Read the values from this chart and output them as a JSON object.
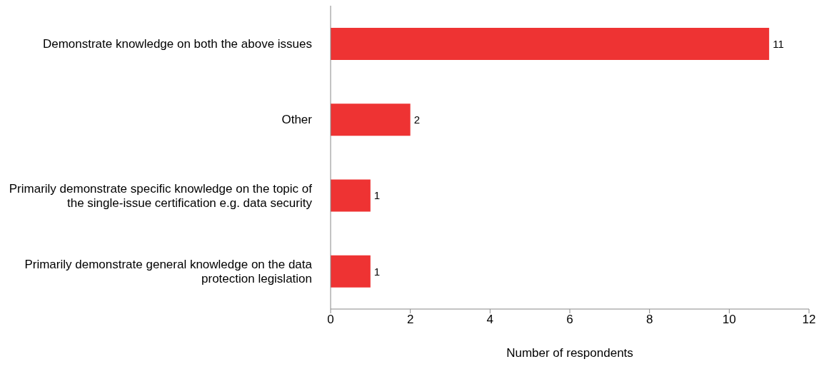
{
  "chart_data": {
    "type": "bar",
    "orientation": "horizontal",
    "categories": [
      "Demonstrate knowledge on both the above issues",
      "Other",
      "Primarily demonstrate specific knowledge on the topic of the single-issue certification e.g. data security",
      "Primarily demonstrate general knowledge on the data protection legislation"
    ],
    "values": [
      11,
      2,
      1,
      1
    ],
    "color": "#ee3333",
    "xlim": [
      0,
      12
    ],
    "xticks": [
      0,
      2,
      4,
      6,
      8,
      10,
      12
    ],
    "xlabel": "Number of respondents",
    "data_labels": true,
    "grid": false,
    "legend": false
  }
}
